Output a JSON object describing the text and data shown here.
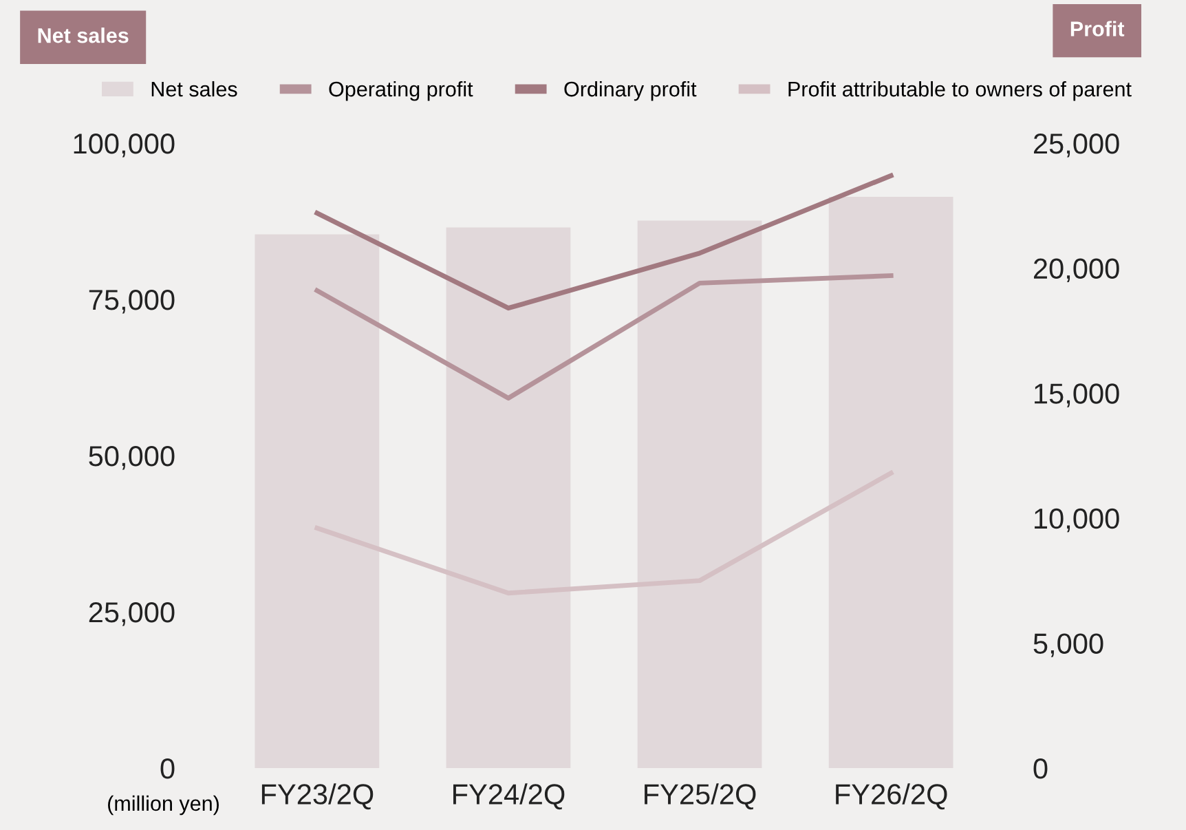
{
  "chart_data": {
    "type": "bar",
    "categories": [
      "FY23/2Q",
      "FY24/2Q",
      "FY25/2Q",
      "FY26/2Q"
    ],
    "ylabel": "Net sales",
    "y2label": "Profit",
    "annotations": [
      "(million yen)"
    ],
    "series": [
      {
        "name": "Net sales",
        "color": "#e1d8da",
        "values": [
          85400,
          86500,
          87600,
          91400
        ]
      },
      {
        "name": "Operating profit",
        "type": "line",
        "axis": "y2",
        "color": "#b5939a",
        "values": [
          19100,
          14800,
          19400,
          19700
        ]
      },
      {
        "name": "Ordinary profit",
        "type": "line",
        "axis": "y2",
        "color": "#a27980",
        "values": [
          22200,
          18400,
          20600,
          23700
        ]
      },
      {
        "name": "Profit attributable to owners of parent",
        "type": "line",
        "axis": "y2",
        "color": "#d5c0c4",
        "values": [
          9600,
          7000,
          7500,
          11800
        ]
      }
    ],
    "ylim": [
      0,
      100000
    ],
    "yticks": [
      0,
      {
        "value": 25000,
        "label": "25,000"
      },
      {
        "value": 50000,
        "label": "50,000"
      },
      {
        "value": 75000,
        "label": "75,000"
      },
      {
        "value": 100000,
        "label": "100,000"
      }
    ],
    "y2lim": [
      0,
      25000
    ],
    "y2ticks": [
      0,
      {
        "value": 5000,
        "label": "5,000"
      },
      {
        "value": 10000,
        "label": "10,000"
      },
      {
        "value": 15000,
        "label": "15,000"
      },
      {
        "value": 20000,
        "label": "20,000"
      },
      {
        "value": 25000,
        "label": "25,000"
      }
    ],
    "grid": false,
    "legend": "top",
    "marker": "none",
    "line_style": "solid"
  }
}
